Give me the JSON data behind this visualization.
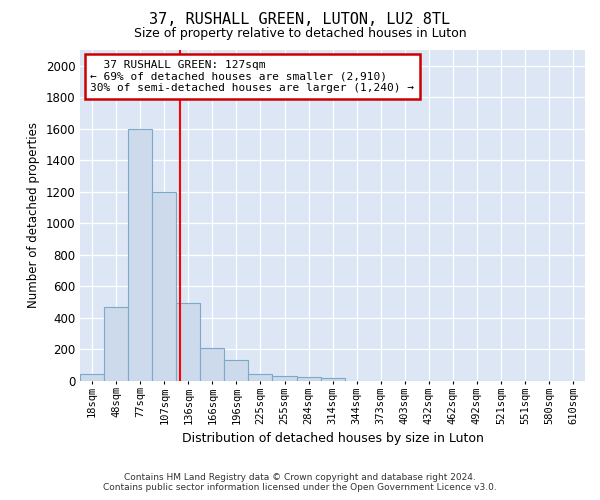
{
  "title": "37, RUSHALL GREEN, LUTON, LU2 8TL",
  "subtitle": "Size of property relative to detached houses in Luton",
  "xlabel": "Distribution of detached houses by size in Luton",
  "ylabel": "Number of detached properties",
  "bin_labels": [
    "18sqm",
    "48sqm",
    "77sqm",
    "107sqm",
    "136sqm",
    "166sqm",
    "196sqm",
    "225sqm",
    "255sqm",
    "284sqm",
    "314sqm",
    "344sqm",
    "373sqm",
    "403sqm",
    "432sqm",
    "462sqm",
    "492sqm",
    "521sqm",
    "551sqm",
    "580sqm",
    "610sqm"
  ],
  "bar_values": [
    40,
    465,
    1600,
    1200,
    490,
    210,
    130,
    45,
    30,
    20,
    15,
    0,
    0,
    0,
    0,
    0,
    0,
    0,
    0,
    0,
    0
  ],
  "bar_color": "#ccdaeb",
  "bar_edge_color": "#7aaac8",
  "bg_color": "#dce6f5",
  "red_line_x": 3.65,
  "annotation_text": "  37 RUSHALL GREEN: 127sqm  \n← 69% of detached houses are smaller (2,910)\n30% of semi-detached houses are larger (1,240) →",
  "annotation_box_color": "#ffffff",
  "annotation_box_edge": "#cc0000",
  "ylim": [
    0,
    2100
  ],
  "yticks": [
    0,
    200,
    400,
    600,
    800,
    1000,
    1200,
    1400,
    1600,
    1800,
    2000
  ],
  "footer_line1": "Contains HM Land Registry data © Crown copyright and database right 2024.",
  "footer_line2": "Contains public sector information licensed under the Open Government Licence v3.0."
}
